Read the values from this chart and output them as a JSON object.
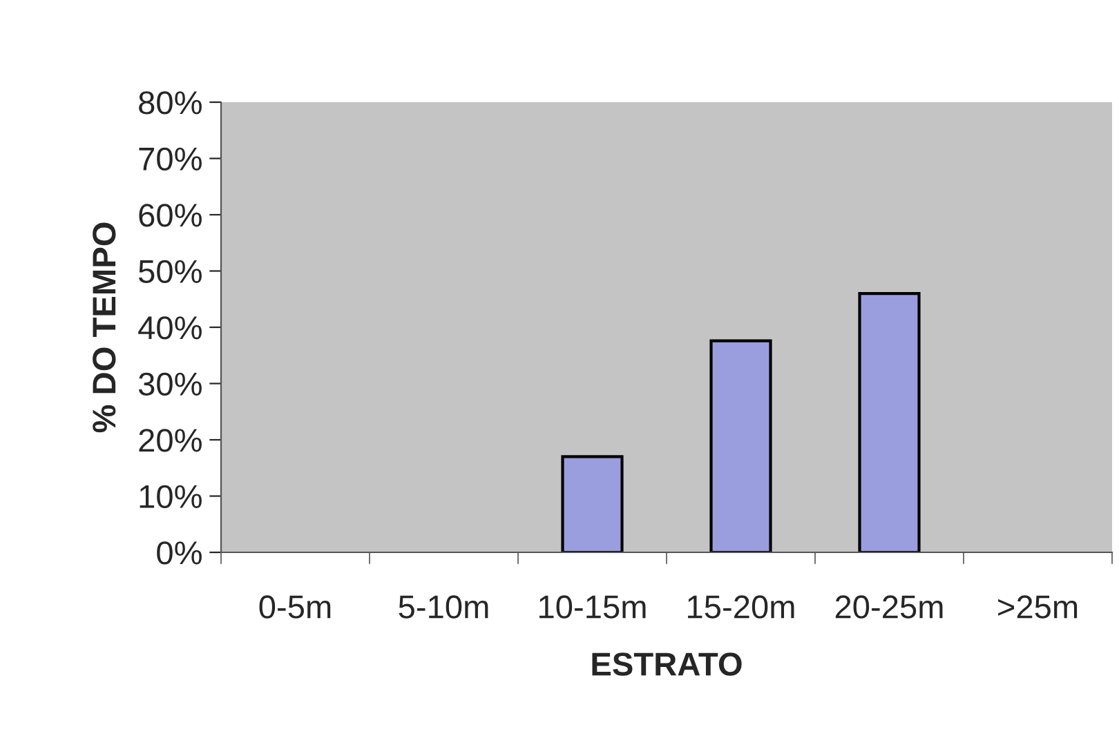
{
  "chart_data": {
    "type": "bar",
    "xlabel": "ESTRATO",
    "ylabel": "% DO TEMPO",
    "categories": [
      "0-5m",
      "5-10m",
      "10-15m",
      "15-20m",
      "20-25m",
      ">25m"
    ],
    "values": [
      0,
      0,
      17,
      37.6,
      46,
      0
    ],
    "color": "#9a9ede",
    "ylim": [
      0,
      80
    ],
    "yticks": [
      {
        "value": 0,
        "label": "0%"
      },
      {
        "value": 10,
        "label": "10%"
      },
      {
        "value": 20,
        "label": "20%"
      },
      {
        "value": 30,
        "label": "30%"
      },
      {
        "value": 40,
        "label": "40%"
      },
      {
        "value": 50,
        "label": "50%"
      },
      {
        "value": 60,
        "label": "60%"
      },
      {
        "value": 70,
        "label": "70%"
      },
      {
        "value": 80,
        "label": "80%"
      }
    ]
  }
}
